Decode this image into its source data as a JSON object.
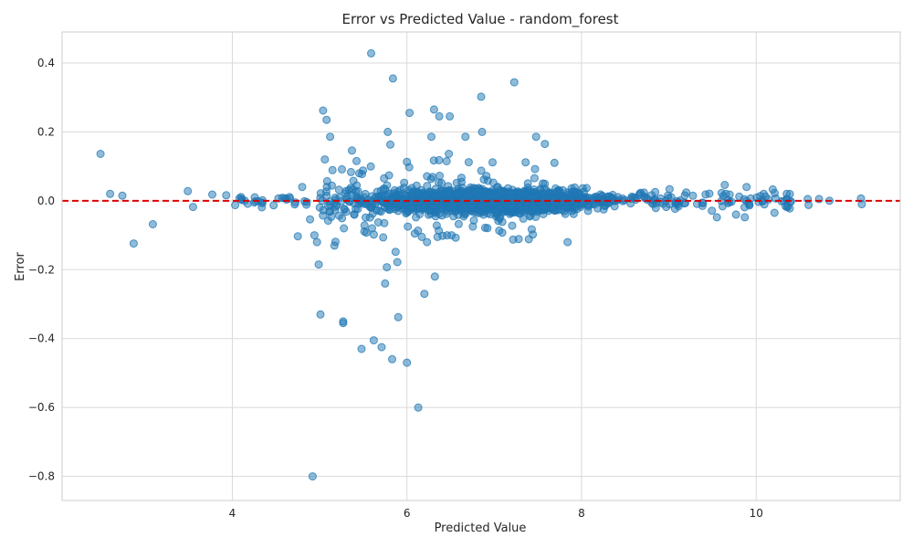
{
  "chart_data": {
    "type": "scatter",
    "title": "Error vs Predicted Value - random_forest",
    "xlabel": "Predicted Value",
    "ylabel": "Error",
    "xlim": [
      2.05,
      11.65
    ],
    "ylim": [
      -0.87,
      0.49
    ],
    "xticks": [
      4,
      6,
      8,
      10
    ],
    "xtick_labels": [
      "4",
      "6",
      "8",
      "10"
    ],
    "yticks": [
      0.4,
      0.2,
      0.0,
      -0.2,
      -0.4,
      -0.6,
      -0.8
    ],
    "ytick_labels": [
      "0.4",
      "0.2",
      "0.0",
      "−0.2",
      "−0.4",
      "−0.6",
      "−0.8"
    ],
    "grid": true,
    "reference_line": {
      "y": 0,
      "style": "dashed",
      "color": "#dd0000"
    },
    "point_color": "#1f77b4",
    "point_alpha": 0.5,
    "note": "dense cloud of roughly 2000 points concentrated near 0 error between predicted values 5 and 10; outliers listed below",
    "outliers": [
      [
        2.49,
        0.136
      ],
      [
        2.6,
        0.02
      ],
      [
        2.74,
        0.015
      ],
      [
        2.87,
        -0.124
      ],
      [
        3.09,
        -0.068
      ],
      [
        3.49,
        0.028
      ],
      [
        3.55,
        -0.018
      ],
      [
        3.77,
        0.018
      ],
      [
        3.93,
        0.016
      ],
      [
        5.59,
        0.428
      ],
      [
        5.84,
        0.355
      ],
      [
        7.23,
        0.344
      ],
      [
        6.85,
        0.302
      ],
      [
        6.31,
        0.265
      ],
      [
        5.04,
        0.262
      ],
      [
        6.03,
        0.255
      ],
      [
        5.08,
        0.235
      ],
      [
        6.37,
        0.245
      ],
      [
        6.49,
        0.245
      ],
      [
        5.78,
        0.2
      ],
      [
        6.86,
        0.2
      ],
      [
        5.12,
        0.186
      ],
      [
        6.28,
        0.186
      ],
      [
        6.67,
        0.186
      ],
      [
        7.48,
        0.186
      ],
      [
        5.81,
        0.163
      ],
      [
        5.37,
        0.146
      ],
      [
        7.58,
        0.165
      ],
      [
        6.48,
        0.136
      ],
      [
        7.69,
        0.11
      ],
      [
        5.06,
        0.12
      ],
      [
        4.8,
        0.04
      ],
      [
        4.75,
        -0.103
      ],
      [
        4.89,
        -0.054
      ],
      [
        4.94,
        -0.1
      ],
      [
        4.97,
        -0.12
      ],
      [
        5.17,
        -0.13
      ],
      [
        4.99,
        -0.185
      ],
      [
        5.6,
        -0.08
      ],
      [
        5.62,
        -0.098
      ],
      [
        5.74,
        -0.065
      ],
      [
        5.87,
        -0.148
      ],
      [
        5.89,
        -0.178
      ],
      [
        5.77,
        -0.193
      ],
      [
        5.75,
        -0.24
      ],
      [
        6.01,
        -0.075
      ],
      [
        6.09,
        -0.095
      ],
      [
        6.17,
        -0.105
      ],
      [
        6.23,
        -0.12
      ],
      [
        6.35,
        -0.105
      ],
      [
        6.46,
        -0.1
      ],
      [
        6.51,
        -0.1
      ],
      [
        6.32,
        -0.22
      ],
      [
        6.2,
        -0.27
      ],
      [
        7.84,
        -0.12
      ],
      [
        5.01,
        -0.33
      ],
      [
        5.27,
        -0.35
      ],
      [
        5.27,
        -0.355
      ],
      [
        5.9,
        -0.338
      ],
      [
        5.62,
        -0.405
      ],
      [
        5.48,
        -0.43
      ],
      [
        5.71,
        -0.425
      ],
      [
        5.83,
        -0.46
      ],
      [
        6.0,
        -0.47
      ],
      [
        6.13,
        -0.6
      ],
      [
        4.92,
        -0.8
      ],
      [
        9.64,
        0.046
      ],
      [
        9.89,
        0.04
      ],
      [
        10.19,
        0.033
      ],
      [
        10.35,
        0.02
      ],
      [
        10.59,
        0.005
      ],
      [
        10.72,
        0.005
      ],
      [
        10.84,
        0.0
      ],
      [
        11.2,
        0.007
      ],
      [
        11.21,
        -0.01
      ],
      [
        10.6,
        -0.012
      ],
      [
        9.77,
        -0.04
      ],
      [
        9.87,
        -0.048
      ],
      [
        10.21,
        -0.035
      ],
      [
        9.55,
        -0.048
      ]
    ]
  }
}
